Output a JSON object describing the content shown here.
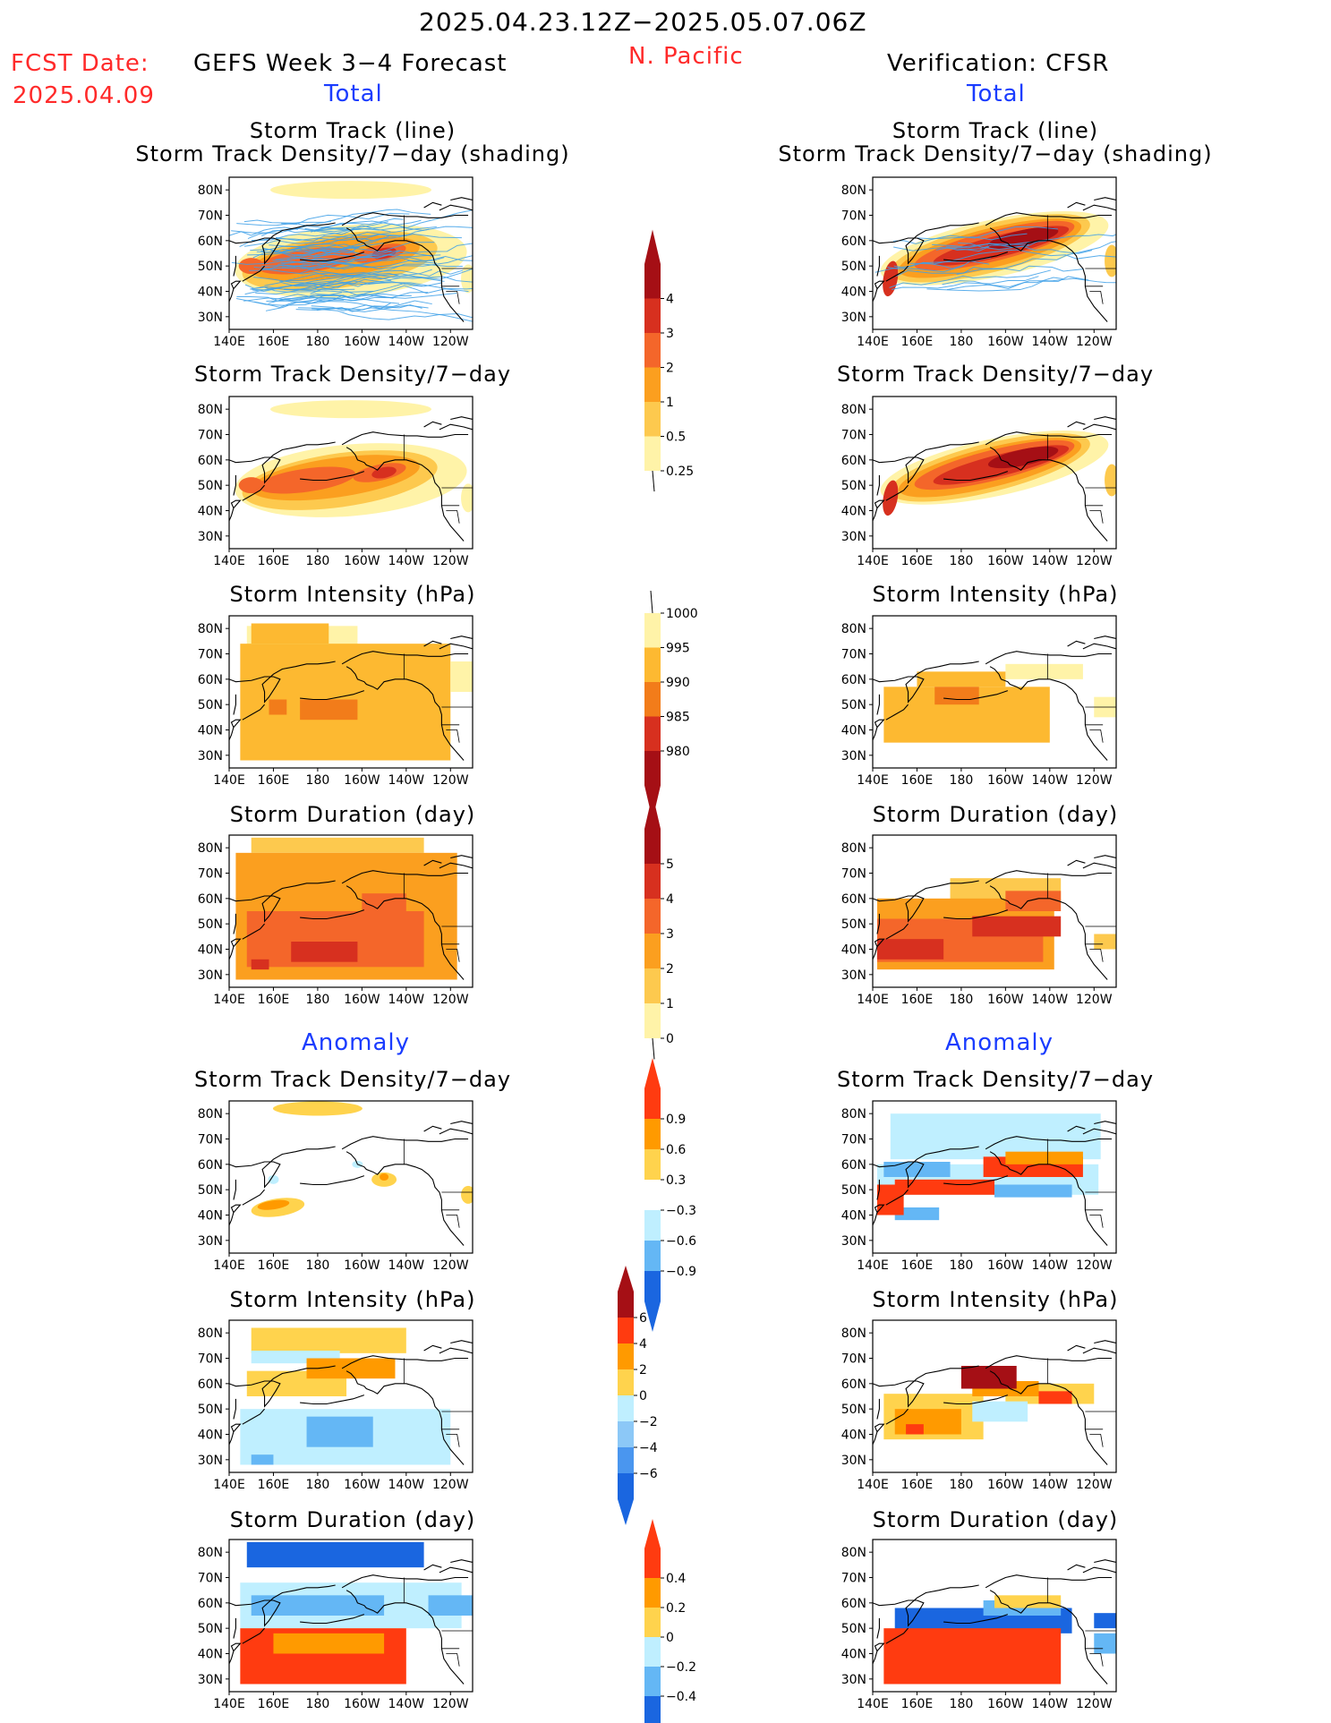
{
  "header": {
    "period": "2025.04.23.12Z−2025.05.07.06Z",
    "fcst_label": "FCST Date:",
    "fcst_date": "2025.04.09",
    "left_title": "GEFS Week 3−4 Forecast",
    "region": "N. Pacific",
    "right_title": "Verification: CFSR",
    "left_sub": "Total",
    "right_sub": "Total",
    "anom_left": "Anomaly",
    "anom_right": "Anomaly"
  },
  "panel_titles": {
    "track_line": "Storm Track (line)",
    "track_density_shading": "Storm Track Density/7−day (shading)",
    "density": "Storm Track Density/7−day",
    "intensity": "Storm Intensity (hPa)",
    "duration": "Storm Duration (day)"
  },
  "axis": {
    "lat_labels": [
      "80N",
      "70N",
      "60N",
      "50N",
      "40N",
      "30N"
    ],
    "lon_labels": [
      "140E",
      "160E",
      "180",
      "160W",
      "140W",
      "120W"
    ]
  },
  "colorbars": {
    "density_total": {
      "levels": [
        "4",
        "3",
        "2",
        "1",
        "0.5",
        "0.25"
      ],
      "colors": [
        "#a50f15",
        "#d7301f",
        "#f4662a",
        "#fb9f1f",
        "#fdc94e",
        "#fff3a8"
      ]
    },
    "intensity_total": {
      "levels": [
        "1000",
        "995",
        "990",
        "985",
        "980"
      ],
      "colors": [
        "#fff3a8",
        "#fdb931",
        "#f27c1a",
        "#d7301f",
        "#a50f15"
      ]
    },
    "duration_total": {
      "levels": [
        "5",
        "4",
        "3",
        "2",
        "1",
        "0"
      ],
      "colors": [
        "#a50f15",
        "#d7301f",
        "#f4662a",
        "#fb9f1f",
        "#fdc94e",
        "#fff3a8"
      ]
    },
    "density_anom": {
      "levels": [
        "0.9",
        "0.6",
        "0.3",
        "−0.3",
        "−0.6",
        "−0.9"
      ],
      "colors": [
        "#ff3b10",
        "#ff9a00",
        "#ffd34d",
        "#ffffff",
        "#bfefff",
        "#64b7f5",
        "#1a66e0"
      ]
    },
    "intensity_anom": {
      "levels": [
        "6",
        "4",
        "2",
        "0",
        "−2",
        "−4",
        "−6"
      ],
      "colors": [
        "#a50f15",
        "#ff3b10",
        "#ff9a00",
        "#ffd34d",
        "#bfefff",
        "#8cc8f7",
        "#4a96ef",
        "#1a66e0"
      ]
    },
    "duration_anom": {
      "levels": [
        "0.4",
        "0.2",
        "0",
        "−0.2",
        "−0.4"
      ],
      "colors": [
        "#ff3b10",
        "#ff9a00",
        "#ffd34d",
        "#bfefff",
        "#64b7f5",
        "#1a66e0"
      ]
    }
  }
}
